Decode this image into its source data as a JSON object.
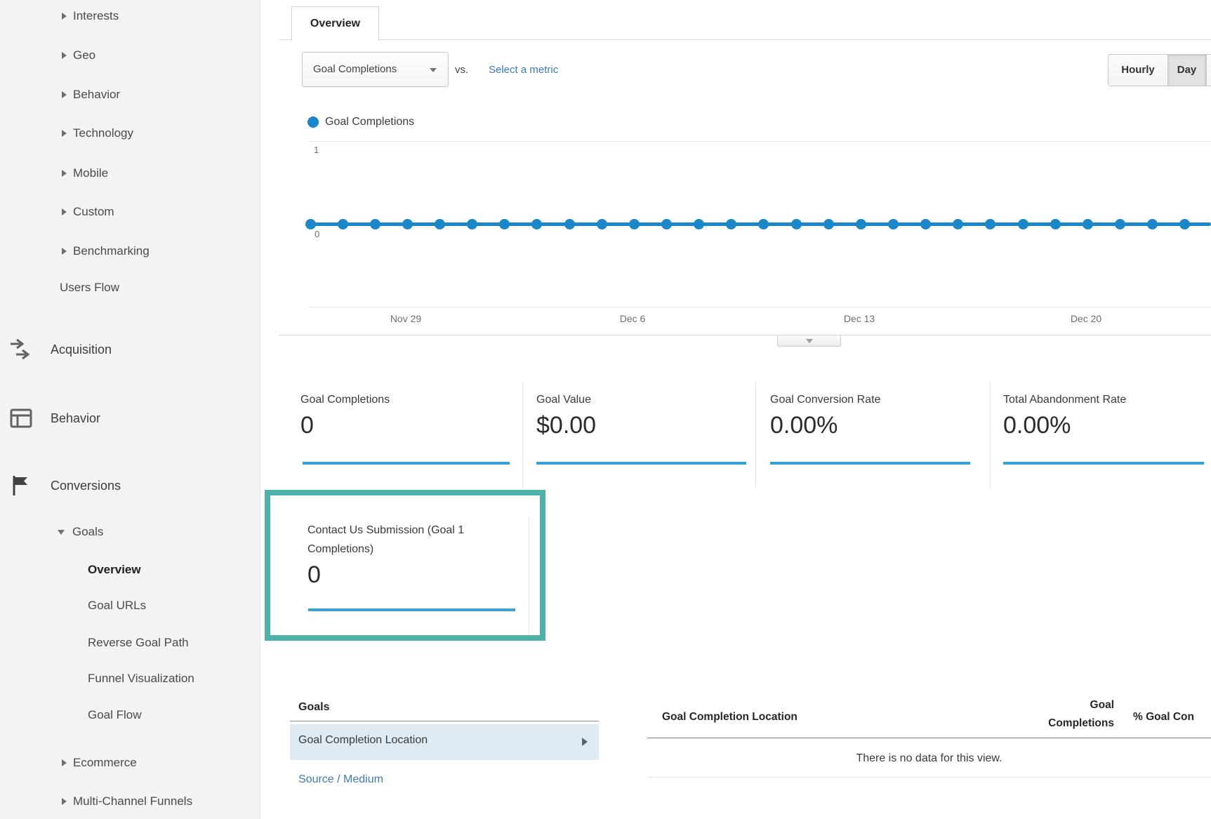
{
  "sidebar": {
    "reports": [
      {
        "label": "Interests"
      },
      {
        "label": "Geo"
      },
      {
        "label": "Behavior"
      },
      {
        "label": "Technology"
      },
      {
        "label": "Mobile"
      },
      {
        "label": "Custom"
      },
      {
        "label": "Benchmarking"
      }
    ],
    "users_flow_label": "Users Flow",
    "sections": [
      {
        "label": "Acquisition",
        "icon": "acquisition-arrows-icon"
      },
      {
        "label": "Behavior",
        "icon": "behavior-grid-icon"
      },
      {
        "label": "Conversions",
        "icon": "conversions-flag-icon"
      }
    ],
    "goals": {
      "label": "Goals",
      "expanded": true,
      "items": [
        {
          "label": "Overview",
          "active": true
        },
        {
          "label": "Goal URLs"
        },
        {
          "label": "Reverse Goal Path"
        },
        {
          "label": "Funnel Visualization"
        },
        {
          "label": "Goal Flow"
        }
      ]
    },
    "collapsed_sections": [
      {
        "label": "Ecommerce"
      },
      {
        "label": "Multi-Channel Funnels"
      }
    ]
  },
  "header": {
    "tab_label": "Overview"
  },
  "controls": {
    "metric_dropdown_value": "Goal Completions",
    "vs_label": "vs.",
    "select_metric_label": "Select a metric",
    "granularity": [
      {
        "label": "Hourly",
        "selected": false
      },
      {
        "label": "Day",
        "selected": true
      }
    ]
  },
  "legend": {
    "series_label": "Goal Completions",
    "dot_color": "#1b87c9"
  },
  "chart_data": {
    "type": "line",
    "title": "Goal Completions",
    "series": [
      {
        "name": "Goal Completions",
        "values": [
          0,
          0,
          0,
          0,
          0,
          0,
          0,
          0,
          0,
          0,
          0,
          0,
          0,
          0,
          0,
          0,
          0,
          0,
          0,
          0,
          0,
          0,
          0,
          0,
          0,
          0,
          0,
          0
        ]
      }
    ],
    "x_ticks": [
      "Nov 29",
      "Dec 6",
      "Dec 13",
      "Dec 20"
    ],
    "y_ticks": [
      0,
      1
    ],
    "ylim": [
      0,
      1
    ],
    "grid": true,
    "legend_position": "top-left",
    "line_color": "#1b87c9"
  },
  "scorecards": [
    {
      "label": "Goal Completions",
      "value": "0"
    },
    {
      "label": "Goal Value",
      "value": "$0.00"
    },
    {
      "label": "Goal Conversion Rate",
      "value": "0.00%"
    },
    {
      "label": "Total Abandonment Rate",
      "value": "0.00%"
    }
  ],
  "highlighted_card": {
    "label": "Contact Us Submission (Goal 1 Completions)",
    "value": "0",
    "highlight_color": "#4db3aa"
  },
  "bottom": {
    "dimension_panel": {
      "title": "Goals",
      "selected_item": "Goal Completion Location",
      "link_item": "Source / Medium"
    },
    "table": {
      "col_location": "Goal Completion Location",
      "col_completions": "Goal Completions",
      "col_percent": "% Goal Con",
      "empty_message": "There is no data for this view."
    }
  }
}
